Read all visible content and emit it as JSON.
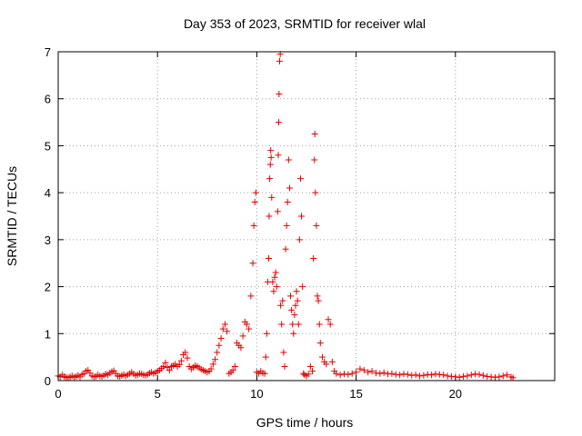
{
  "chart_data": {
    "type": "scatter",
    "title": "Day 353 of 2023, SRMTID for receiver wlal",
    "xlabel": "GPS time / hours",
    "ylabel": "SRMTID / TECUs",
    "xlim": [
      0,
      25
    ],
    "ylim": [
      0,
      7
    ],
    "xticks": [
      0,
      5,
      10,
      15,
      20
    ],
    "yticks": [
      0,
      1,
      2,
      3,
      4,
      5,
      6,
      7
    ],
    "xtick_labels": [
      "0",
      "5",
      "10",
      "15",
      "20"
    ],
    "ytick_labels": [
      "0",
      "1",
      "2",
      "3",
      "4",
      "5",
      "6",
      "7"
    ],
    "grid": true,
    "marker": "+",
    "color": "#e00000",
    "series": [
      {
        "name": "SRMTID",
        "points": [
          [
            0.0,
            0.1
          ],
          [
            0.1,
            0.08
          ],
          [
            0.2,
            0.12
          ],
          [
            0.3,
            0.09
          ],
          [
            0.4,
            0.07
          ],
          [
            0.5,
            0.06
          ],
          [
            0.6,
            0.08
          ],
          [
            0.7,
            0.1
          ],
          [
            0.8,
            0.07
          ],
          [
            0.9,
            0.09
          ],
          [
            1.0,
            0.11
          ],
          [
            1.1,
            0.08
          ],
          [
            1.2,
            0.13
          ],
          [
            1.3,
            0.15
          ],
          [
            1.4,
            0.2
          ],
          [
            1.5,
            0.22
          ],
          [
            1.6,
            0.16
          ],
          [
            1.7,
            0.1
          ],
          [
            1.8,
            0.08
          ],
          [
            1.9,
            0.09
          ],
          [
            2.0,
            0.12
          ],
          [
            2.1,
            0.1
          ],
          [
            2.2,
            0.09
          ],
          [
            2.3,
            0.11
          ],
          [
            2.4,
            0.14
          ],
          [
            2.5,
            0.12
          ],
          [
            2.6,
            0.16
          ],
          [
            2.7,
            0.19
          ],
          [
            2.8,
            0.21
          ],
          [
            2.9,
            0.15
          ],
          [
            3.0,
            0.1
          ],
          [
            3.1,
            0.09
          ],
          [
            3.2,
            0.11
          ],
          [
            3.3,
            0.13
          ],
          [
            3.4,
            0.1
          ],
          [
            3.5,
            0.12
          ],
          [
            3.6,
            0.15
          ],
          [
            3.7,
            0.18
          ],
          [
            3.8,
            0.14
          ],
          [
            3.9,
            0.11
          ],
          [
            4.0,
            0.12
          ],
          [
            4.1,
            0.15
          ],
          [
            4.2,
            0.14
          ],
          [
            4.3,
            0.12
          ],
          [
            4.4,
            0.11
          ],
          [
            4.5,
            0.13
          ],
          [
            4.6,
            0.16
          ],
          [
            4.7,
            0.18
          ],
          [
            4.8,
            0.15
          ],
          [
            4.9,
            0.17
          ],
          [
            5.0,
            0.2
          ],
          [
            5.1,
            0.22
          ],
          [
            5.2,
            0.26
          ],
          [
            5.3,
            0.3
          ],
          [
            5.4,
            0.38
          ],
          [
            5.5,
            0.28
          ],
          [
            5.6,
            0.22
          ],
          [
            5.7,
            0.3
          ],
          [
            5.8,
            0.32
          ],
          [
            5.9,
            0.35
          ],
          [
            6.0,
            0.3
          ],
          [
            6.1,
            0.34
          ],
          [
            6.2,
            0.42
          ],
          [
            6.3,
            0.55
          ],
          [
            6.4,
            0.6
          ],
          [
            6.5,
            0.48
          ],
          [
            6.6,
            0.3
          ],
          [
            6.7,
            0.25
          ],
          [
            6.8,
            0.28
          ],
          [
            6.9,
            0.32
          ],
          [
            7.0,
            0.3
          ],
          [
            7.1,
            0.27
          ],
          [
            7.2,
            0.24
          ],
          [
            7.3,
            0.22
          ],
          [
            7.4,
            0.2
          ],
          [
            7.5,
            0.18
          ],
          [
            7.6,
            0.2
          ],
          [
            7.7,
            0.25
          ],
          [
            7.8,
            0.35
          ],
          [
            7.9,
            0.45
          ],
          [
            8.0,
            0.6
          ],
          [
            8.1,
            0.75
          ],
          [
            8.2,
            0.9
          ],
          [
            8.3,
            1.1
          ],
          [
            8.4,
            1.2
          ],
          [
            8.5,
            1.05
          ],
          [
            8.6,
            0.15
          ],
          [
            8.7,
            0.18
          ],
          [
            8.8,
            0.22
          ],
          [
            8.9,
            0.3
          ],
          [
            9.0,
            0.8
          ],
          [
            9.1,
            0.75
          ],
          [
            9.2,
            0.7
          ],
          [
            9.3,
            0.95
          ],
          [
            9.4,
            1.25
          ],
          [
            9.5,
            1.2
          ],
          [
            9.6,
            1.1
          ],
          [
            9.7,
            1.8
          ],
          [
            9.8,
            2.5
          ],
          [
            9.85,
            3.3
          ],
          [
            9.9,
            3.8
          ],
          [
            9.95,
            4.0
          ],
          [
            10.0,
            0.18
          ],
          [
            10.1,
            0.15
          ],
          [
            10.2,
            0.2
          ],
          [
            10.3,
            0.16
          ],
          [
            10.4,
            0.15
          ],
          [
            10.45,
            0.5
          ],
          [
            10.5,
            1.0
          ],
          [
            10.55,
            2.1
          ],
          [
            10.6,
            2.6
          ],
          [
            10.62,
            3.5
          ],
          [
            10.65,
            4.3
          ],
          [
            10.68,
            4.6
          ],
          [
            10.7,
            4.9
          ],
          [
            10.72,
            4.75
          ],
          [
            10.75,
            3.9
          ],
          [
            10.8,
            2.1
          ],
          [
            10.85,
            1.9
          ],
          [
            10.9,
            2.2
          ],
          [
            10.95,
            2.3
          ],
          [
            11.0,
            2.0
          ],
          [
            11.05,
            3.6
          ],
          [
            11.08,
            4.8
          ],
          [
            11.1,
            5.5
          ],
          [
            11.12,
            6.1
          ],
          [
            11.15,
            6.8
          ],
          [
            11.18,
            6.95
          ],
          [
            11.2,
            1.6
          ],
          [
            11.25,
            1.2
          ],
          [
            11.3,
            1.7
          ],
          [
            11.35,
            0.6
          ],
          [
            11.4,
            0.3
          ],
          [
            11.45,
            2.8
          ],
          [
            11.5,
            3.3
          ],
          [
            11.55,
            3.8
          ],
          [
            11.6,
            4.7
          ],
          [
            11.65,
            4.1
          ],
          [
            11.7,
            1.8
          ],
          [
            11.75,
            1.5
          ],
          [
            11.8,
            1.2
          ],
          [
            11.85,
            1.0
          ],
          [
            11.9,
            1.4
          ],
          [
            11.95,
            1.6
          ],
          [
            12.0,
            1.9
          ],
          [
            12.05,
            1.7
          ],
          [
            12.1,
            1.2
          ],
          [
            12.15,
            3.0
          ],
          [
            12.2,
            4.3
          ],
          [
            12.25,
            3.5
          ],
          [
            12.3,
            2.0
          ],
          [
            12.35,
            0.15
          ],
          [
            12.4,
            0.12
          ],
          [
            12.5,
            0.1
          ],
          [
            12.6,
            0.14
          ],
          [
            12.7,
            0.3
          ],
          [
            12.8,
            0.2
          ],
          [
            12.85,
            2.6
          ],
          [
            12.9,
            4.7
          ],
          [
            12.92,
            5.25
          ],
          [
            12.95,
            4.0
          ],
          [
            13.0,
            3.3
          ],
          [
            13.05,
            1.8
          ],
          [
            13.1,
            1.7
          ],
          [
            13.15,
            1.2
          ],
          [
            13.2,
            0.8
          ],
          [
            13.3,
            0.5
          ],
          [
            13.4,
            0.4
          ],
          [
            13.5,
            0.35
          ],
          [
            13.6,
            1.3
          ],
          [
            13.7,
            1.2
          ],
          [
            13.8,
            0.4
          ],
          [
            13.9,
            0.2
          ],
          [
            14.0,
            0.15
          ],
          [
            14.2,
            0.12
          ],
          [
            14.4,
            0.14
          ],
          [
            14.6,
            0.13
          ],
          [
            14.8,
            0.15
          ],
          [
            15.0,
            0.18
          ],
          [
            15.2,
            0.25
          ],
          [
            15.4,
            0.22
          ],
          [
            15.6,
            0.18
          ],
          [
            15.8,
            0.2
          ],
          [
            16.0,
            0.16
          ],
          [
            16.2,
            0.15
          ],
          [
            16.4,
            0.17
          ],
          [
            16.6,
            0.14
          ],
          [
            16.8,
            0.15
          ],
          [
            17.0,
            0.13
          ],
          [
            17.2,
            0.12
          ],
          [
            17.4,
            0.14
          ],
          [
            17.6,
            0.13
          ],
          [
            17.8,
            0.11
          ],
          [
            18.0,
            0.12
          ],
          [
            18.2,
            0.1
          ],
          [
            18.4,
            0.11
          ],
          [
            18.6,
            0.13
          ],
          [
            18.8,
            0.12
          ],
          [
            19.0,
            0.14
          ],
          [
            19.2,
            0.13
          ],
          [
            19.4,
            0.12
          ],
          [
            19.6,
            0.1
          ],
          [
            19.8,
            0.09
          ],
          [
            20.0,
            0.08
          ],
          [
            20.2,
            0.07
          ],
          [
            20.4,
            0.09
          ],
          [
            20.6,
            0.1
          ],
          [
            20.8,
            0.12
          ],
          [
            21.0,
            0.14
          ],
          [
            21.2,
            0.13
          ],
          [
            21.4,
            0.11
          ],
          [
            21.6,
            0.09
          ],
          [
            21.8,
            0.08
          ],
          [
            22.0,
            0.07
          ],
          [
            22.2,
            0.08
          ],
          [
            22.4,
            0.1
          ],
          [
            22.6,
            0.12
          ],
          [
            22.8,
            0.08
          ],
          [
            22.9,
            0.06
          ]
        ]
      }
    ]
  }
}
